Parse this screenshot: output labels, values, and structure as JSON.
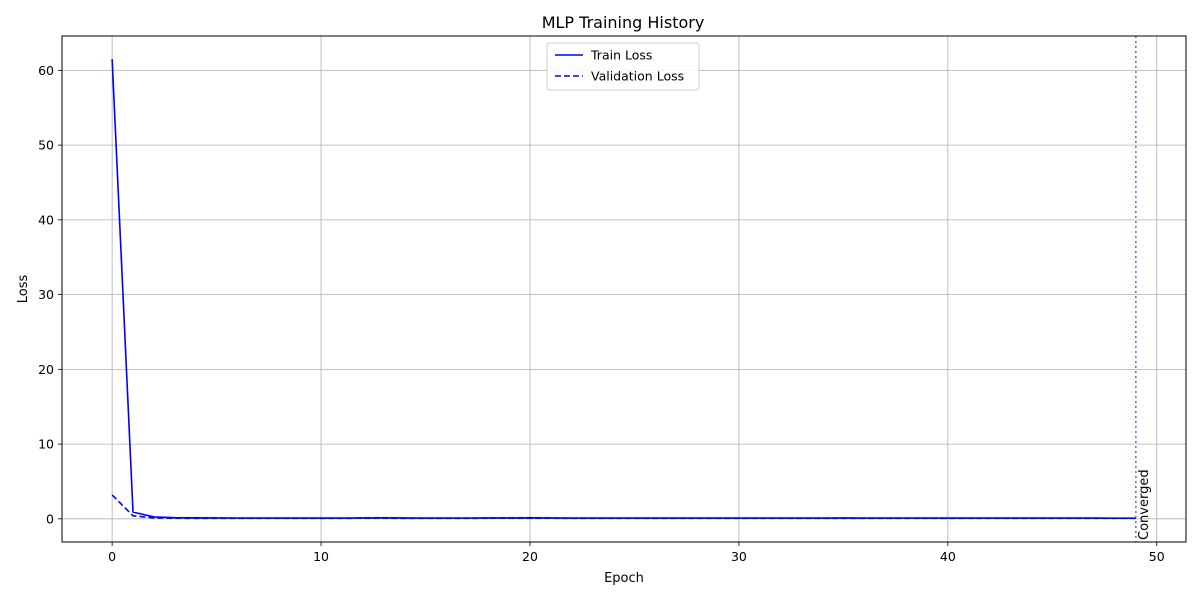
{
  "chart_data": {
    "type": "line",
    "title": "MLP Training History",
    "xlabel": "Epoch",
    "ylabel": "Loss",
    "xlim": [
      -2.4,
      51.4
    ],
    "ylim": [
      -3.1,
      64.6
    ],
    "xticks": [
      0,
      10,
      20,
      30,
      40,
      50
    ],
    "yticks": [
      0,
      10,
      20,
      30,
      40,
      50,
      60
    ],
    "grid": true,
    "legend_position": "upper-center",
    "x": [
      0,
      1,
      2,
      3,
      4,
      5,
      6,
      7,
      8,
      9,
      10,
      11,
      12,
      13,
      14,
      15,
      16,
      17,
      18,
      19,
      20,
      21,
      22,
      23,
      24,
      25,
      26,
      27,
      28,
      29,
      30,
      31,
      32,
      33,
      34,
      35,
      36,
      37,
      38,
      39,
      40,
      41,
      42,
      43,
      44,
      45,
      46,
      47,
      48,
      49
    ],
    "series": [
      {
        "name": "Train Loss",
        "color": "#0000ff",
        "style": "solid",
        "values": [
          61.5,
          0.9,
          0.25,
          0.15,
          0.13,
          0.12,
          0.11,
          0.1,
          0.1,
          0.1,
          0.1,
          0.1,
          0.12,
          0.14,
          0.12,
          0.1,
          0.1,
          0.11,
          0.12,
          0.12,
          0.14,
          0.12,
          0.1,
          0.1,
          0.1,
          0.1,
          0.1,
          0.1,
          0.1,
          0.1,
          0.1,
          0.1,
          0.1,
          0.1,
          0.1,
          0.12,
          0.1,
          0.1,
          0.11,
          0.1,
          0.1,
          0.1,
          0.1,
          0.1,
          0.1,
          0.1,
          0.1,
          0.1,
          0.09,
          0.09
        ]
      },
      {
        "name": "Validation Loss",
        "color": "#0000ff",
        "style": "dashed",
        "values": [
          3.2,
          0.4,
          0.12,
          0.08,
          0.07,
          0.07,
          0.06,
          0.06,
          0.06,
          0.06,
          0.06,
          0.07,
          0.08,
          0.08,
          0.07,
          0.06,
          0.06,
          0.07,
          0.08,
          0.08,
          0.09,
          0.08,
          0.06,
          0.06,
          0.06,
          0.06,
          0.06,
          0.06,
          0.06,
          0.06,
          0.06,
          0.06,
          0.06,
          0.06,
          0.06,
          0.07,
          0.06,
          0.06,
          0.07,
          0.06,
          0.06,
          0.06,
          0.06,
          0.06,
          0.06,
          0.06,
          0.06,
          0.06,
          0.06,
          0.06
        ]
      }
    ],
    "annotations": [
      {
        "type": "vline",
        "x": 49,
        "color": "#6666ee",
        "style": "dotted",
        "label": "Converged"
      }
    ]
  }
}
